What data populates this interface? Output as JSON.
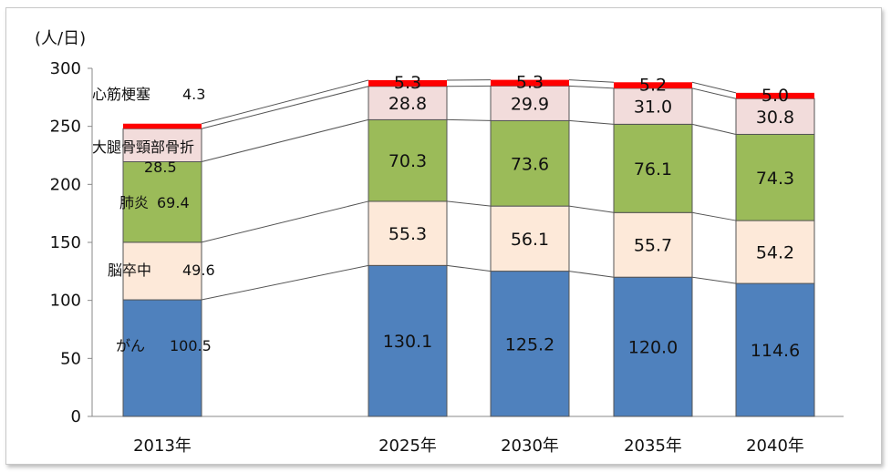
{
  "chart_data": {
    "type": "bar",
    "stacked": true,
    "unit_label": "(人/日)",
    "ylim": [
      0,
      300
    ],
    "yticks": [
      0,
      50,
      100,
      150,
      200,
      250,
      300
    ],
    "grid": false,
    "categories": [
      "2013年",
      "2025年",
      "2030年",
      "2035年",
      "2040年"
    ],
    "series": [
      {
        "name": "がん",
        "color": "#4f81bd",
        "values": [
          100.5,
          130.1,
          125.2,
          120.0,
          114.6
        ],
        "labels": [
          "100.5",
          "130.1",
          "125.2",
          "120.0",
          "114.6"
        ]
      },
      {
        "name": "脳卒中",
        "color": "#fde9d9",
        "values": [
          49.6,
          55.3,
          56.1,
          55.7,
          54.2
        ],
        "labels": [
          "49.6",
          "55.3",
          "56.1",
          "55.7",
          "54.2"
        ]
      },
      {
        "name": "肺炎",
        "color": "#9bbb59",
        "values": [
          69.4,
          70.3,
          73.6,
          76.1,
          74.3
        ],
        "labels": [
          "69.4",
          "70.3",
          "73.6",
          "76.1",
          "74.3"
        ]
      },
      {
        "name": "大腿骨頸部骨折",
        "color": "#f2dcdb",
        "values": [
          28.5,
          28.8,
          29.9,
          31.0,
          30.8
        ],
        "labels": [
          "28.5",
          "28.8",
          "29.9",
          "31.0",
          "30.8"
        ]
      },
      {
        "name": "心筋梗塞",
        "color": "#ff0000",
        "values": [
          4.3,
          5.3,
          5.3,
          5.2,
          5.0
        ],
        "labels": [
          "4.3",
          "5.3",
          "5.3",
          "5.2",
          "5.0"
        ]
      }
    ]
  }
}
